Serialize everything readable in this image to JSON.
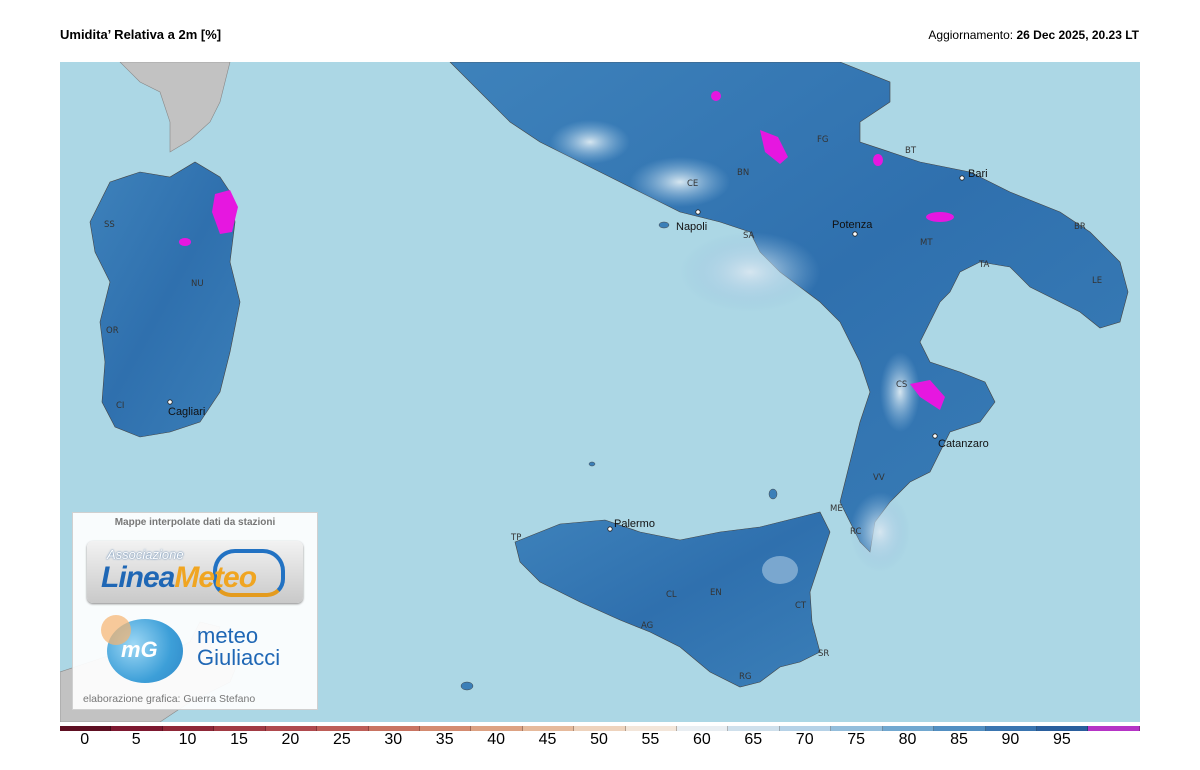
{
  "header": {
    "title": "Umidita’ Relativa a 2m [%]",
    "updated_label": "Aggiornamento:",
    "updated_value": "26 Dec 2025, 20.23 LT"
  },
  "map": {
    "cities": [
      "Bari",
      "Napoli",
      "Potenza",
      "Catanzaro",
      "Palermo",
      "Cagliari"
    ],
    "provinces": [
      "FG",
      "BT",
      "BR",
      "TA",
      "LE",
      "MT",
      "BN",
      "CE",
      "SA",
      "CS",
      "VV",
      "RC",
      "ME",
      "CT",
      "SR",
      "RG",
      "EN",
      "CL",
      "AG",
      "TP",
      "SS",
      "NU",
      "OR",
      "CI"
    ],
    "colors": {
      "sea": "#acd7e5",
      "foreign_land": "#c2c2c2",
      "land_humid": "#3b7fb8",
      "land_dry": "#a7cde6",
      "saturated": "#e617e0"
    }
  },
  "credits": {
    "heading": "Mappe interpolate dati da stazioni",
    "logo1_small": "Associazione",
    "logo1_big_a": "Linea",
    "logo1_big_b": "Meteo",
    "logo2_badge": "mG",
    "logo2_line1": "meteo",
    "logo2_line2": "Giuliacci",
    "footer": "elaborazione grafica: Guerra Stefano"
  },
  "legend": {
    "labels": [
      "0",
      "5",
      "10",
      "15",
      "20",
      "25",
      "30",
      "35",
      "40",
      "45",
      "50",
      "55",
      "60",
      "65",
      "70",
      "75",
      "80",
      "85",
      "90",
      "95"
    ],
    "colors": [
      "#5e0f22",
      "#7d1830",
      "#8f2838",
      "#a23b44",
      "#b04a4e",
      "#be5e58",
      "#c97462",
      "#d48b70",
      "#dda283",
      "#e6ba9c",
      "#eed3bd",
      "#f3e6da",
      "#e9eef2",
      "#cfe0ec",
      "#b6d2e7",
      "#94bedc",
      "#72a8d0",
      "#528fc2",
      "#3a75b0",
      "#2a5f9d",
      "#b634c6"
    ]
  }
}
